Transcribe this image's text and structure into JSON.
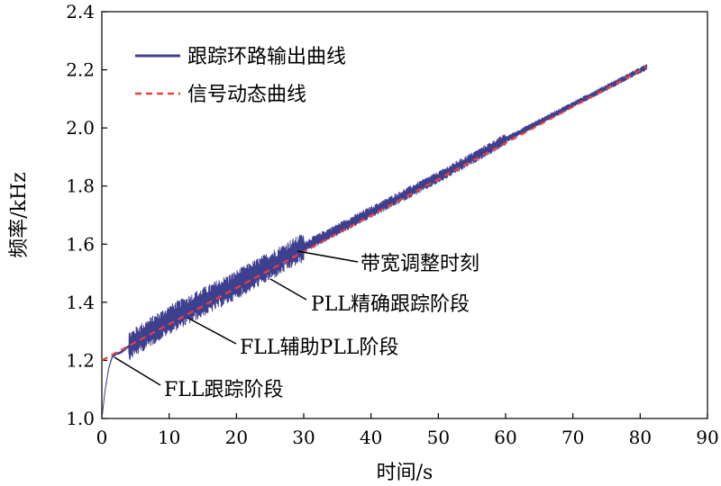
{
  "chart_data": {
    "type": "line",
    "title": "",
    "xlabel": "时间/s",
    "ylabel": "频率/kHz",
    "xlim": [
      0,
      90
    ],
    "ylim": [
      1.0,
      2.4
    ],
    "xticks": [
      0,
      10,
      20,
      30,
      40,
      50,
      60,
      70,
      80,
      90
    ],
    "yticks": [
      1.0,
      1.2,
      1.4,
      1.6,
      1.8,
      2.0,
      2.2,
      2.4
    ],
    "xtick_labels": [
      "0",
      "10",
      "20",
      "30",
      "40",
      "50",
      "60",
      "70",
      "80",
      "90"
    ],
    "ytick_labels": [
      "1.0",
      "1.2",
      "1.4",
      "1.6",
      "1.8",
      "2.0",
      "2.2",
      "2.4"
    ],
    "grid": false,
    "legend_position": "top-left",
    "series": [
      {
        "name": "跟踪环路输出曲线",
        "color": "#3f3f8f",
        "style": "solid",
        "description_points": {
          "x": [
            0,
            0.5,
            1.0,
            1.5,
            2.0,
            3,
            4,
            10,
            20,
            30,
            40,
            50,
            60,
            70,
            81
          ],
          "y": [
            1.0,
            1.1,
            1.17,
            1.21,
            1.22,
            1.23,
            1.25,
            1.34,
            1.46,
            1.59,
            1.71,
            1.83,
            1.96,
            2.08,
            2.21
          ]
        },
        "noise_amplitude": [
          {
            "x_range": [
              4,
              30
            ],
            "amplitude": 0.05
          },
          {
            "x_range": [
              30,
              60
            ],
            "amplitude": 0.02
          },
          {
            "x_range": [
              60,
              81
            ],
            "amplitude": 0.01
          }
        ]
      },
      {
        "name": "信号动态曲线",
        "color": "#e8403a",
        "style": "dashed",
        "x": [
          0,
          81
        ],
        "y": [
          1.2,
          2.21
        ]
      }
    ],
    "annotations": [
      {
        "text": "带宽调整时刻",
        "target": [
          30,
          1.57
        ]
      },
      {
        "text": "PLL精确跟踪阶段",
        "target": [
          27,
          1.5
        ]
      },
      {
        "text": "FLL辅助PLL阶段",
        "target": [
          14,
          1.38
        ]
      },
      {
        "text": "FLL跟踪阶段",
        "target": [
          1.5,
          1.22
        ]
      }
    ]
  }
}
